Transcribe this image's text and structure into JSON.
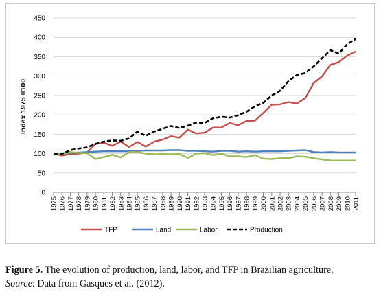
{
  "chart_data": {
    "type": "line",
    "title": "",
    "xlabel": "",
    "ylabel": "Index 1975 =100",
    "ylim": [
      0,
      450
    ],
    "yticks": [
      0,
      50,
      100,
      150,
      200,
      250,
      300,
      350,
      400,
      450
    ],
    "grid": "horizontal",
    "legend_position": "bottom",
    "x": [
      "1975",
      "1976",
      "1977",
      "1978",
      "1979",
      "1980",
      "1981",
      "1982",
      "1983",
      "1984",
      "1985",
      "1986",
      "1987",
      "1988",
      "1989",
      "1990",
      "1991",
      "1992",
      "1993",
      "1994",
      "1995",
      "1996",
      "1997",
      "1998",
      "1999",
      "2000",
      "2001",
      "2002",
      "2003",
      "2004",
      "2005",
      "2006",
      "2007",
      "2008",
      "2009",
      "2010",
      "2011"
    ],
    "series": [
      {
        "name": "TFP",
        "color": "#c0504d",
        "style": "solid",
        "values": [
          100,
          95,
          99,
          100,
          103,
          125,
          128,
          120,
          131,
          117,
          130,
          118,
          131,
          136,
          145,
          141,
          162,
          152,
          154,
          167,
          167,
          179,
          173,
          184,
          185,
          205,
          226,
          227,
          233,
          229,
          243,
          282,
          299,
          329,
          336,
          353,
          363
        ]
      },
      {
        "name": "Land",
        "color": "#4f81bd",
        "style": "solid",
        "values": [
          100,
          101,
          102,
          103,
          104,
          105,
          106,
          106,
          106,
          106,
          107,
          108,
          108,
          108,
          109,
          109,
          107,
          107,
          106,
          105,
          107,
          107,
          105,
          106,
          105,
          106,
          106,
          106,
          107,
          108,
          109,
          104,
          103,
          104,
          103,
          103,
          103
        ]
      },
      {
        "name": "Labor",
        "color": "#9bbb59",
        "style": "solid",
        "values": [
          100,
          98,
          104,
          102,
          101,
          86,
          91,
          97,
          90,
          104,
          104,
          100,
          98,
          99,
          98,
          99,
          89,
          100,
          101,
          96,
          100,
          93,
          93,
          91,
          96,
          87,
          86,
          88,
          88,
          93,
          92,
          88,
          85,
          82,
          82,
          82,
          82
        ]
      },
      {
        "name": "Production",
        "color": "#000000",
        "style": "dashed",
        "values": [
          100,
          99,
          109,
          113,
          116,
          125,
          131,
          134,
          133,
          139,
          157,
          146,
          157,
          164,
          171,
          166,
          172,
          180,
          179,
          191,
          195,
          193,
          199,
          208,
          222,
          231,
          250,
          262,
          287,
          303,
          308,
          325,
          346,
          367,
          358,
          382,
          396
        ]
      }
    ]
  },
  "caption": {
    "figure_label": "Figure 5.",
    "figure_text": " The evolution of production, land, labor, and TFP in Brazilian agriculture.",
    "source_label": "Source",
    "source_text": ": Data from Gasques et al. (2012)."
  }
}
